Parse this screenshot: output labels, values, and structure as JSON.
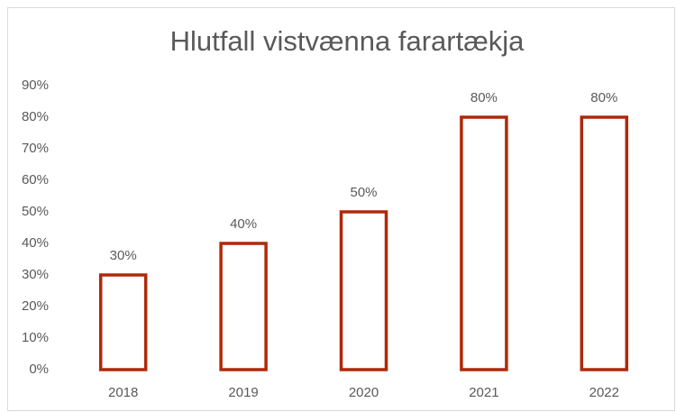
{
  "chart_data": {
    "type": "bar",
    "title": "Hlutfall vistvænna farartækja",
    "categories": [
      "2018",
      "2019",
      "2020",
      "2021",
      "2022"
    ],
    "values": [
      30,
      40,
      50,
      80,
      80
    ],
    "value_labels": [
      "30%",
      "40%",
      "50%",
      "80%",
      "80%"
    ],
    "color": "#b0280a",
    "ylim": [
      0,
      90
    ],
    "yticks": [
      {
        "value": 0,
        "label": "0%"
      },
      {
        "value": 10,
        "label": "10%"
      },
      {
        "value": 20,
        "label": "20%"
      },
      {
        "value": 30,
        "label": "30%"
      },
      {
        "value": 40,
        "label": "40%"
      },
      {
        "value": 50,
        "label": "50%"
      },
      {
        "value": 60,
        "label": "60%"
      },
      {
        "value": 70,
        "label": "70%"
      },
      {
        "value": 80,
        "label": "80%"
      },
      {
        "value": 90,
        "label": "90%"
      }
    ],
    "grid": false
  }
}
